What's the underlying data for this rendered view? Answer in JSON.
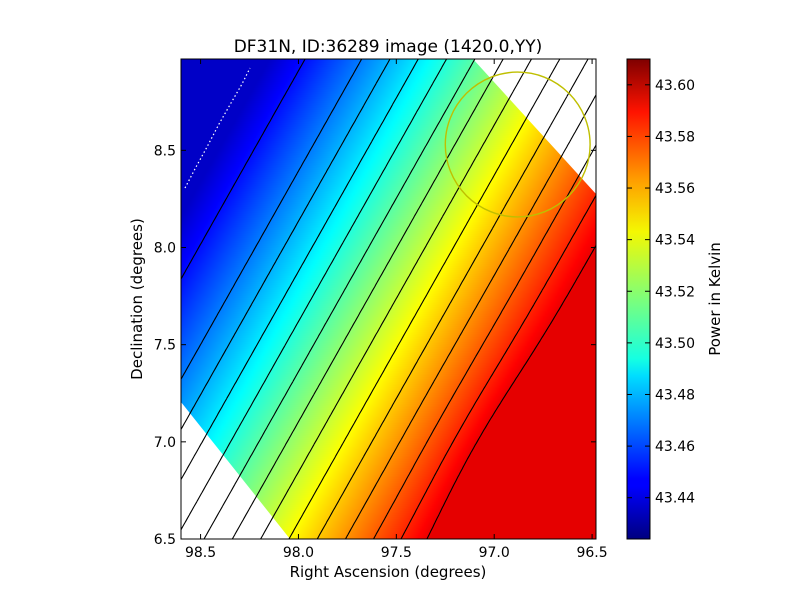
{
  "chart_data": {
    "type": "heatmap",
    "title": "DF31N, ID:36289 image (1420.0,YY)",
    "xlabel": "Right Ascension (degrees)",
    "ylabel": "Declination (degrees)",
    "xlim": [
      98.6,
      96.48
    ],
    "ylim": [
      6.5,
      8.97
    ],
    "x_ticks": [
      98.5,
      98.0,
      97.5,
      97.0,
      96.5
    ],
    "x_tick_labels": [
      "98.5",
      "98.0",
      "97.5",
      "97.0",
      "96.5"
    ],
    "y_ticks": [
      6.5,
      7.0,
      7.5,
      8.0,
      8.5
    ],
    "y_tick_labels": [
      "6.5",
      "7.0",
      "7.5",
      "8.0",
      "8.5"
    ],
    "colormap": "jet",
    "colorbar": {
      "label": "Power in Kelvin",
      "min": 43.424,
      "max": 43.61,
      "ticks": [
        43.44,
        43.46,
        43.48,
        43.5,
        43.52,
        43.54,
        43.56,
        43.58,
        43.6
      ],
      "tick_labels": [
        "43.44",
        "43.46",
        "43.48",
        "43.50",
        "43.52",
        "43.54",
        "43.56",
        "43.58",
        "43.60"
      ]
    },
    "contour_levels": [
      43.45,
      43.47,
      43.48,
      43.49,
      43.5,
      43.51,
      43.52,
      43.53,
      43.54,
      43.55,
      43.56,
      43.57,
      43.58,
      43.59
    ],
    "circle": {
      "center_ra": 96.88,
      "center_dec": 8.53,
      "radius_deg": 0.37,
      "color": "#bfbf00"
    },
    "colors": {
      "circle": "#bfbf00",
      "contour": "#000000",
      "frame": "#000000"
    }
  }
}
